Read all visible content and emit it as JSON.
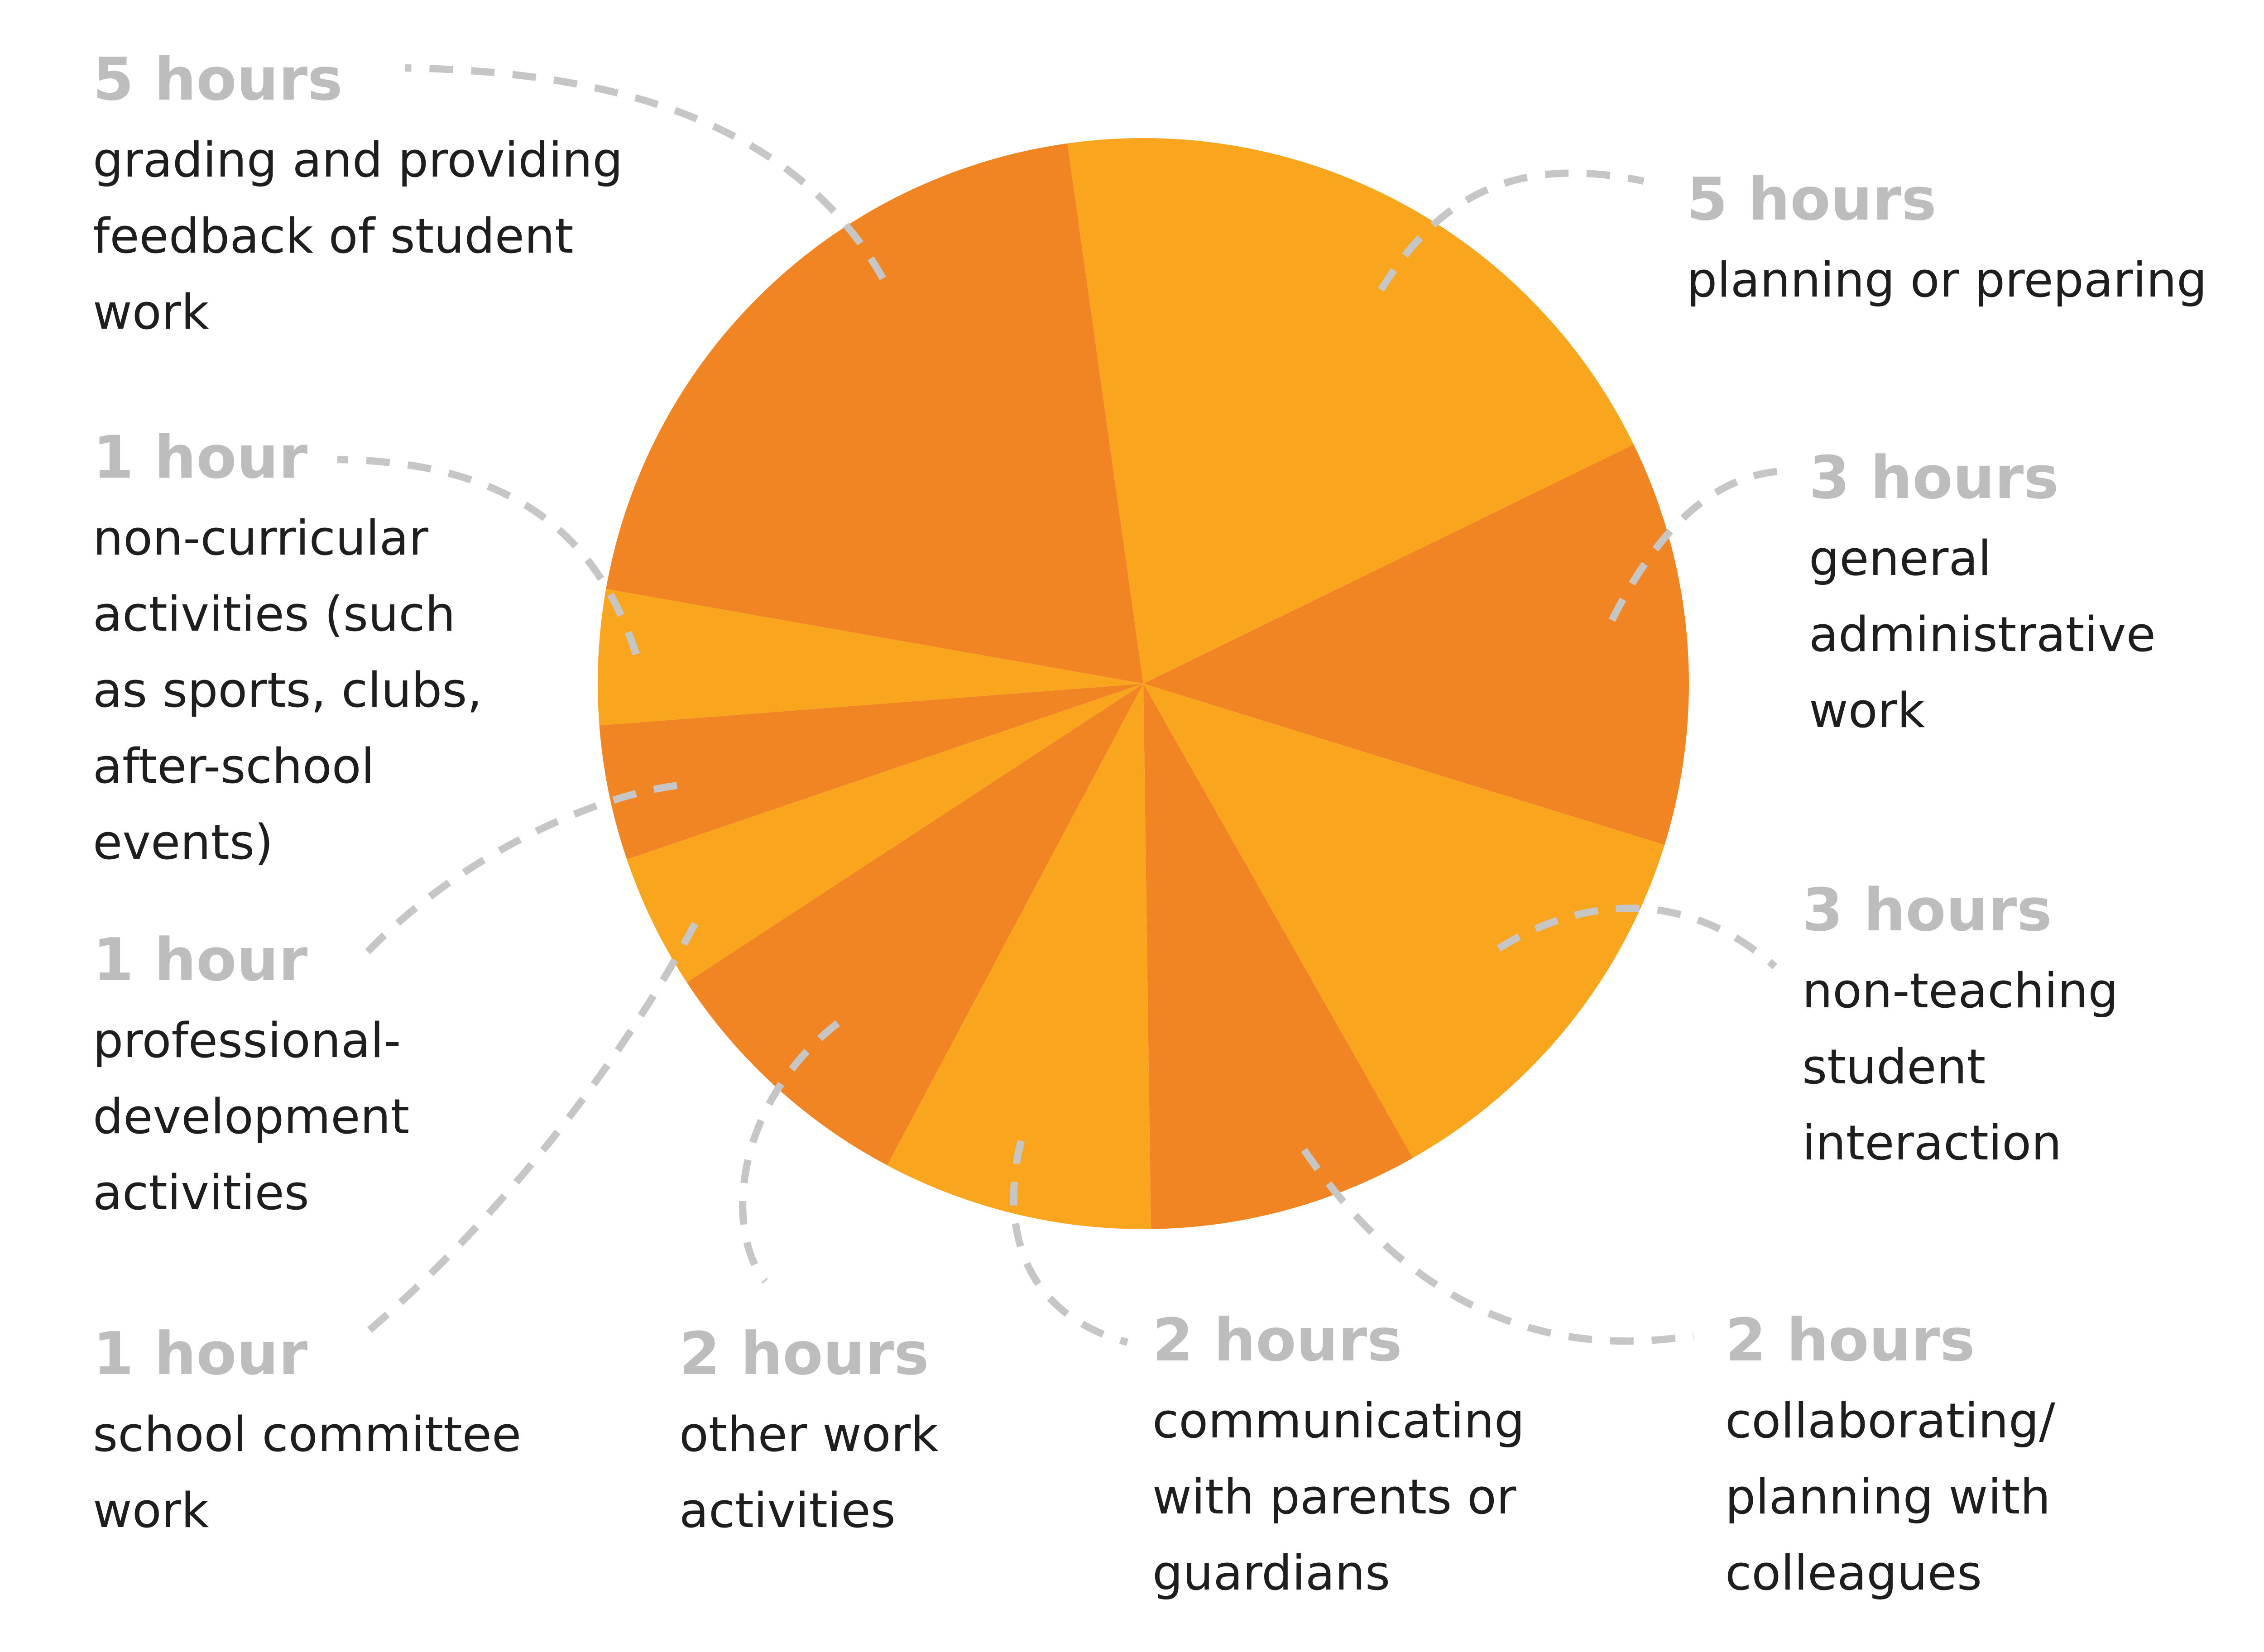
{
  "chart_data": {
    "type": "pie",
    "title": "",
    "start_angle_deg": -8,
    "direction": "clockwise",
    "colors": [
      "#F9A61E",
      "#F28523"
    ],
    "slices": [
      {
        "hours_label": "5 hours",
        "label_lines": [
          "planning or preparing"
        ],
        "value": 5
      },
      {
        "hours_label": "3 hours",
        "label_lines": [
          "general",
          "administrative",
          "work"
        ],
        "value": 3
      },
      {
        "hours_label": "3 hours",
        "label_lines": [
          "non-teaching",
          "student",
          "interaction"
        ],
        "value": 3
      },
      {
        "hours_label": "2 hours",
        "label_lines": [
          "collaborating/",
          "planning with",
          "colleagues"
        ],
        "value": 2
      },
      {
        "hours_label": "2 hours",
        "label_lines": [
          "communicating",
          "with parents or",
          "guardians"
        ],
        "value": 2
      },
      {
        "hours_label": "2 hours",
        "label_lines": [
          "other work",
          "activities"
        ],
        "value": 2
      },
      {
        "hours_label": "1 hour",
        "label_lines": [
          "school committee",
          "work"
        ],
        "value": 1
      },
      {
        "hours_label": "1 hour",
        "label_lines": [
          "professional-",
          "development",
          "activities"
        ],
        "value": 1
      },
      {
        "hours_label": "1 hour",
        "label_lines": [
          "non-curricular",
          "activities (such",
          "as sports, clubs,",
          "after-school",
          "events)"
        ],
        "value": 1
      },
      {
        "hours_label": "5 hours",
        "label_lines": [
          "grading and providing",
          "feedback of student",
          "work"
        ],
        "value": 5
      }
    ]
  }
}
